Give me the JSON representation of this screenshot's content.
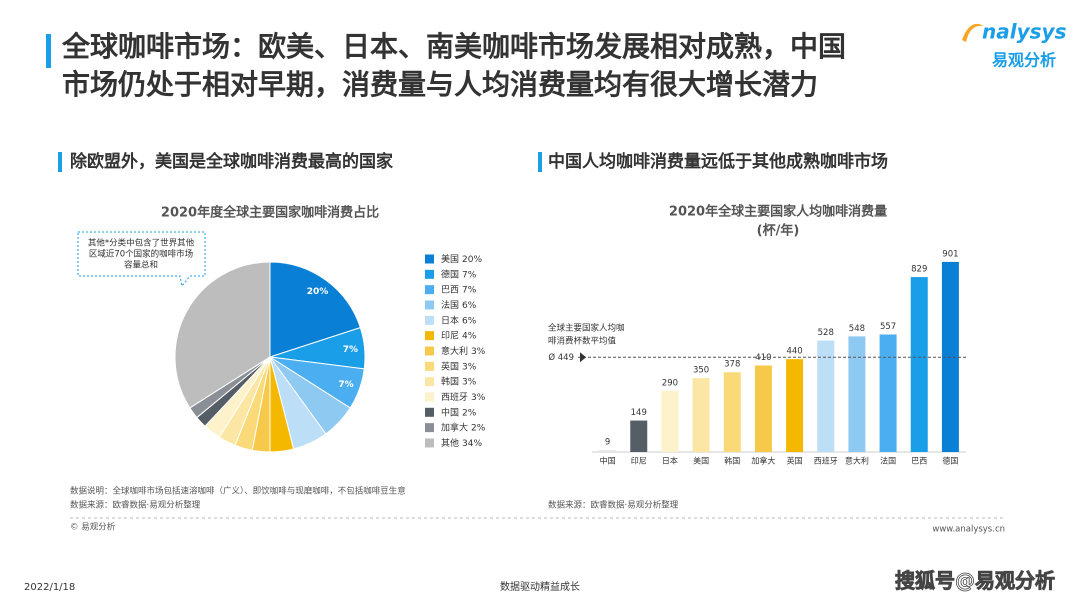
{
  "header": {
    "title": [
      "全球咖啡市场：欧美、日本、南美咖啡市场发展相对成熟，中国",
      "市场仍处于相对早期，消费量与人均消费量均有很大增长潜力"
    ],
    "logo": {
      "name": "nalysys",
      "cn": "易观分析"
    }
  },
  "sections": [
    "除欧盟外，美国是全球咖啡消费最高的国家",
    "中国人均咖啡消费量远低于其他成熟咖啡市场"
  ],
  "chart_data": [
    {
      "type": "pie",
      "title": "2020年度全球主要国家咖啡消费占比",
      "categories": [
        "美国",
        "德国",
        "巴西",
        "法国",
        "日本",
        "印尼",
        "意大利",
        "英国",
        "韩国",
        "西班牙",
        "中国",
        "加拿大",
        "其他"
      ],
      "values": [
        20,
        7,
        7,
        6,
        6,
        4,
        3,
        3,
        3,
        3,
        2,
        2,
        34
      ],
      "value_labels": [
        "20%",
        "7%",
        "7%",
        "6%",
        "6%",
        "4%",
        "3%",
        "3%",
        "3%",
        "3%",
        "2%",
        "2%",
        "34%"
      ],
      "slice_labels": [
        "20%",
        "7%",
        "7%",
        null,
        null,
        null,
        null,
        null,
        null,
        null,
        null,
        null,
        null
      ],
      "colors": [
        "#0a7fd6",
        "#1a9ee8",
        "#4aaef0",
        "#8ec9f2",
        "#bcdff7",
        "#f5b800",
        "#f7c94a",
        "#f9d978",
        "#fbe6a3",
        "#fdf2c9",
        "#555e66",
        "#8a8f95",
        "#bdbdbd"
      ],
      "annotation": [
        "其他*分类中包含了世界其他",
        "区域近70个国家的咖啡市场",
        "容量总和"
      ],
      "legend": "right"
    },
    {
      "type": "bar",
      "title": "2020年全球主要国家人均咖啡消费量",
      "subtitle": "(杯/年)",
      "categories": [
        "中国",
        "印尼",
        "日本",
        "美国",
        "韩国",
        "加拿大",
        "英国",
        "西班牙",
        "意大利",
        "法国",
        "巴西",
        "德国"
      ],
      "values": [
        9,
        149,
        290,
        350,
        378,
        410,
        440,
        528,
        548,
        557,
        829,
        901
      ],
      "colors": [
        "#e8e8e8",
        "#555e66",
        "#fdf2c9",
        "#fbe6a3",
        "#f9d978",
        "#f7c94a",
        "#f5b800",
        "#bcdff7",
        "#8ec9f2",
        "#4aaef0",
        "#1a9ee8",
        "#0a7fd6"
      ],
      "ylim": [
        0,
        1000
      ],
      "reference_line": {
        "value": 449,
        "label": "Ø 449",
        "note": [
          "全球主要国家人均咖",
          "啡消费杯数平均值"
        ]
      }
    }
  ],
  "notes": {
    "left": [
      "数据说明：全球咖啡市场包括速溶咖啡（广义）、即饮咖啡与现磨咖啡，不包括咖啡豆生意",
      "数据来源：欧睿数据·易观分析整理"
    ],
    "right": "数据来源：欧睿数据·易观分析整理",
    "copyright": "© 易观分析",
    "url": "www.analysys.cn"
  },
  "footer": {
    "date": "2022/1/18",
    "slogan": "数据驱动精益成长",
    "source": "搜狐号@易观分析"
  }
}
